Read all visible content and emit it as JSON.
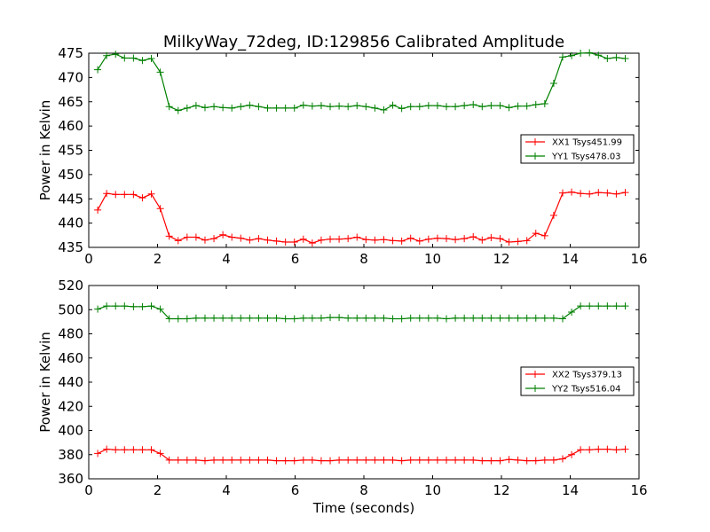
{
  "figure_title": "MilkyWay_72deg, ID:129856 Calibrated Amplitude",
  "chart_data": [
    {
      "type": "line",
      "title": "MilkyWay_72deg, ID:129856 Calibrated Amplitude",
      "xlabel": "",
      "ylabel": "Power in Kelvin",
      "xlim": [
        0,
        16
      ],
      "ylim": [
        435,
        475
      ],
      "xticks": [
        0,
        2,
        4,
        6,
        8,
        10,
        12,
        14,
        16
      ],
      "yticks": [
        435,
        440,
        445,
        450,
        455,
        460,
        465,
        470,
        475
      ],
      "grid": false,
      "legend_position": "right",
      "marker": "+",
      "x": [
        0.26,
        0.52,
        0.78,
        1.04,
        1.3,
        1.56,
        1.82,
        2.08,
        2.34,
        2.6,
        2.86,
        3.12,
        3.38,
        3.64,
        3.9,
        4.16,
        4.42,
        4.68,
        4.94,
        5.2,
        5.46,
        5.72,
        5.98,
        6.24,
        6.5,
        6.76,
        7.02,
        7.28,
        7.54,
        7.8,
        8.06,
        8.32,
        8.58,
        8.84,
        9.1,
        9.36,
        9.62,
        9.88,
        10.14,
        10.4,
        10.66,
        10.92,
        11.18,
        11.44,
        11.7,
        11.96,
        12.22,
        12.48,
        12.74,
        13.0,
        13.26,
        13.52,
        13.78,
        14.04,
        14.3,
        14.56,
        14.82,
        15.08,
        15.34,
        15.6
      ],
      "series": [
        {
          "name": "XX1 Tsys451.99",
          "color": "#ff0000",
          "values": [
            442.7,
            446.1,
            445.9,
            445.9,
            445.9,
            445.2,
            446.0,
            443.0,
            437.3,
            436.4,
            437.1,
            437.1,
            436.5,
            436.8,
            437.6,
            437.1,
            436.9,
            436.5,
            436.8,
            436.5,
            436.3,
            436.1,
            436.1,
            436.7,
            435.9,
            436.5,
            436.7,
            436.7,
            436.8,
            437.1,
            436.6,
            436.5,
            436.6,
            436.4,
            436.3,
            436.9,
            436.3,
            436.7,
            436.9,
            436.8,
            436.6,
            436.8,
            437.2,
            436.5,
            437.0,
            436.8,
            436.1,
            436.2,
            436.4,
            437.9,
            437.4,
            441.6,
            446.2,
            446.4,
            446.1,
            446.0,
            446.3,
            446.2,
            446.0,
            446.3
          ]
        },
        {
          "name": "YY1 Tsys478.03",
          "color": "#008000",
          "values": [
            471.6,
            474.5,
            474.8,
            474.0,
            474.0,
            473.5,
            473.9,
            471.1,
            464.0,
            463.2,
            463.7,
            464.2,
            463.8,
            464.0,
            463.8,
            463.7,
            464.0,
            464.3,
            464.0,
            463.7,
            463.7,
            463.7,
            463.7,
            464.3,
            464.1,
            464.2,
            464.0,
            464.1,
            464.0,
            464.2,
            464.0,
            463.7,
            463.3,
            464.3,
            463.6,
            464.0,
            464.0,
            464.2,
            464.2,
            464.0,
            464.0,
            464.2,
            464.4,
            464.0,
            464.2,
            464.2,
            463.8,
            464.1,
            464.1,
            464.4,
            464.6,
            468.8,
            474.2,
            474.5,
            475.0,
            475.1,
            474.6,
            473.9,
            474.1,
            473.9
          ]
        }
      ]
    },
    {
      "type": "line",
      "title": "",
      "xlabel": "Time (seconds)",
      "ylabel": "Power in Kelvin",
      "xlim": [
        0,
        16
      ],
      "ylim": [
        360,
        520
      ],
      "xticks": [
        0,
        2,
        4,
        6,
        8,
        10,
        12,
        14,
        16
      ],
      "yticks": [
        360,
        380,
        400,
        420,
        440,
        460,
        480,
        500,
        520
      ],
      "grid": false,
      "legend_position": "right",
      "marker": "+",
      "x": [
        0.26,
        0.52,
        0.78,
        1.04,
        1.3,
        1.56,
        1.82,
        2.08,
        2.34,
        2.6,
        2.86,
        3.12,
        3.38,
        3.64,
        3.9,
        4.16,
        4.42,
        4.68,
        4.94,
        5.2,
        5.46,
        5.72,
        5.98,
        6.24,
        6.5,
        6.76,
        7.02,
        7.28,
        7.54,
        7.8,
        8.06,
        8.32,
        8.58,
        8.84,
        9.1,
        9.36,
        9.62,
        9.88,
        10.14,
        10.4,
        10.66,
        10.92,
        11.18,
        11.44,
        11.7,
        11.96,
        12.22,
        12.48,
        12.74,
        13.0,
        13.26,
        13.52,
        13.78,
        14.04,
        14.3,
        14.56,
        14.82,
        15.08,
        15.34,
        15.6
      ],
      "series": [
        {
          "name": "XX2 Tsys379.13",
          "color": "#ff0000",
          "values": [
            381.0,
            384.5,
            384.0,
            384.0,
            384.0,
            384.0,
            384.0,
            381.0,
            375.5,
            375.5,
            375.5,
            375.5,
            375.0,
            375.5,
            375.5,
            375.5,
            375.5,
            375.5,
            375.5,
            375.5,
            375.0,
            375.0,
            375.0,
            375.5,
            375.5,
            375.0,
            375.0,
            375.5,
            375.5,
            375.5,
            375.5,
            375.5,
            375.5,
            375.5,
            375.0,
            375.5,
            375.5,
            375.5,
            375.5,
            375.5,
            375.5,
            375.5,
            375.5,
            375.0,
            375.0,
            375.0,
            376.0,
            375.5,
            375.0,
            375.0,
            375.5,
            375.5,
            376.5,
            380.0,
            384.0,
            384.0,
            384.5,
            384.5,
            384.0,
            384.5
          ]
        },
        {
          "name": "YY2 Tsys516.04",
          "color": "#008000",
          "values": [
            500.5,
            503.0,
            503.0,
            503.0,
            502.5,
            502.5,
            503.0,
            500.5,
            492.5,
            492.5,
            492.5,
            493.0,
            493.0,
            493.0,
            493.0,
            493.0,
            493.0,
            493.0,
            493.0,
            493.0,
            493.0,
            492.5,
            492.5,
            493.0,
            493.0,
            493.0,
            493.5,
            493.5,
            493.0,
            493.0,
            493.0,
            493.0,
            493.0,
            492.5,
            492.5,
            493.0,
            493.0,
            493.0,
            493.0,
            492.5,
            493.0,
            493.0,
            493.0,
            493.0,
            493.0,
            493.0,
            493.0,
            493.0,
            493.0,
            493.0,
            493.0,
            493.0,
            492.5,
            498.0,
            503.0,
            503.0,
            503.0,
            503.0,
            503.0,
            503.0
          ]
        }
      ]
    }
  ]
}
